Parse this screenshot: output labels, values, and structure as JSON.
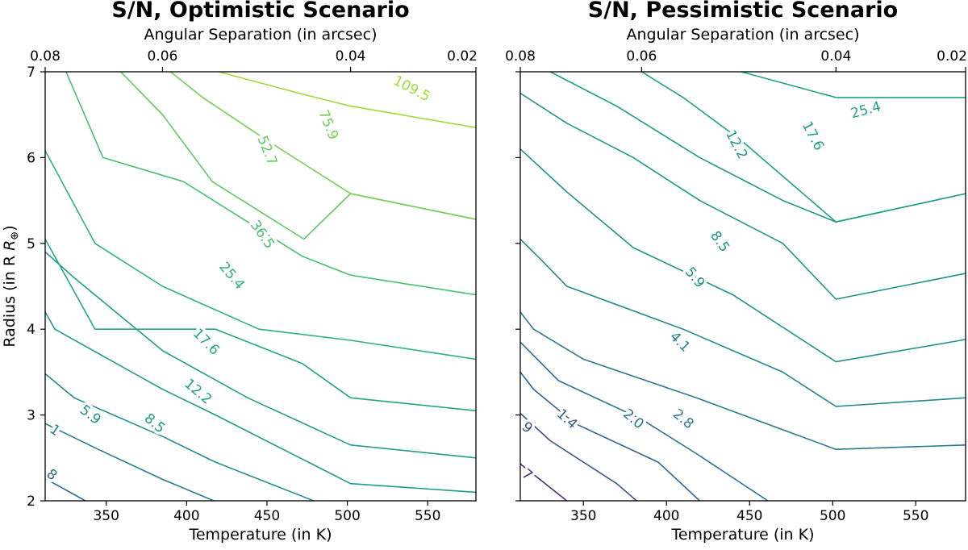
{
  "chart_data": [
    {
      "type": "contour",
      "title": "S/N, Optimistic Scenario",
      "xlabel": "Temperature (in K)",
      "ylabel": "Radius (in R",
      "ylabel_symbol": "⊕",
      "ylabel_end": ")",
      "x2label": "Angular Separation (in arcsec)",
      "xlim": [
        312,
        580
      ],
      "ylim": [
        2,
        7
      ],
      "xticks": [
        "350",
        "400",
        "450",
        "500",
        "550"
      ],
      "xtick_values": [
        350,
        400,
        450,
        500,
        550
      ],
      "yticks": [
        "2",
        "3",
        "4",
        "5",
        "6",
        "7"
      ],
      "yticks_labeled": true,
      "x2ticks": [
        "0.08",
        "0.06",
        "0.04",
        "0.02"
      ],
      "x2tick_temps": [
        312,
        385,
        502,
        580
      ],
      "colormap": [
        "#440154",
        "#3b528b",
        "#21918c",
        "#5ec962",
        "#fde725"
      ],
      "contours": [
        {
          "label": "8",
          "color": "#2b6a8d",
          "points": [
            [
              312,
              2.26
            ],
            [
              337,
              2.0
            ]
          ]
        },
        {
          "label": "1",
          "color": "#287d8e",
          "points": [
            [
              312,
              2.9
            ],
            [
              345,
              2.6
            ],
            [
              385,
              2.25
            ],
            [
              417,
              2.0
            ]
          ]
        },
        {
          "label": "5.9",
          "color": "#218e8d",
          "points": [
            [
              312,
              3.48
            ],
            [
              330,
              3.2
            ],
            [
              385,
              2.75
            ],
            [
              418,
              2.45
            ],
            [
              479,
              2.0
            ]
          ]
        },
        {
          "label": "8.5",
          "color": "#1f9a8a",
          "points": [
            [
              312,
              4.2
            ],
            [
              318,
              4.0
            ],
            [
              385,
              3.3
            ],
            [
              418,
              3.0
            ],
            [
              502,
              2.2
            ],
            [
              580,
              2.1
            ]
          ]
        },
        {
          "label": "12.2",
          "color": "#1f9e89",
          "points": [
            [
              312,
              4.9
            ],
            [
              330,
              4.6
            ],
            [
              385,
              3.75
            ],
            [
              438,
              3.2
            ],
            [
              502,
              2.65
            ],
            [
              580,
              2.5
            ]
          ]
        },
        {
          "label": "17.6",
          "color": "#22a785",
          "points": [
            [
              312,
              5.05
            ],
            [
              343,
              4.0
            ],
            [
              418,
              4.0
            ],
            [
              472,
              3.6
            ],
            [
              502,
              3.2
            ],
            [
              580,
              3.05
            ]
          ]
        },
        {
          "label": "25.4",
          "color": "#2db27d",
          "points": [
            [
              312,
              6.08
            ],
            [
              343,
              5.0
            ],
            [
              385,
              4.5
            ],
            [
              445,
              4.0
            ],
            [
              502,
              3.87
            ],
            [
              580,
              3.65
            ]
          ]
        },
        {
          "label": "36.5",
          "color": "#48c16e",
          "points": [
            [
              325,
              7.0
            ],
            [
              348,
              6.0
            ],
            [
              398,
              5.72
            ],
            [
              472,
              4.85
            ],
            [
              502,
              4.63
            ],
            [
              580,
              4.4
            ]
          ]
        },
        {
          "label": "52.7",
          "color": "#5ec962",
          "points": [
            [
              359,
              7.0
            ],
            [
              385,
              6.5
            ],
            [
              416,
              5.72
            ],
            [
              473,
              5.05
            ],
            [
              502,
              5.58
            ],
            [
              580,
              5.28
            ]
          ]
        },
        {
          "label": "75.9",
          "color": "#75d054",
          "points": [
            [
              390,
              7.0
            ],
            [
              410,
              6.7
            ],
            [
              450,
              6.2
            ],
            [
              502,
              5.58
            ],
            [
              580,
              5.28
            ]
          ]
        },
        {
          "label": "109.5",
          "color": "#9fda3a",
          "points": [
            [
              420,
              7.0
            ],
            [
              470,
              6.75
            ],
            [
              502,
              6.6
            ],
            [
              580,
              6.35
            ]
          ]
        }
      ],
      "contour_labels": [
        {
          "text": "8",
          "x": 316,
          "y": 2.3,
          "angle": 38,
          "color": "#2b6a8d"
        },
        {
          "text": "1",
          "x": 318,
          "y": 2.82,
          "angle": 35,
          "color": "#287d8e"
        },
        {
          "text": "5.9",
          "x": 340,
          "y": 3.0,
          "angle": 38,
          "color": "#218e8d"
        },
        {
          "text": "8.5",
          "x": 380,
          "y": 2.9,
          "angle": 40,
          "color": "#1f9a8a"
        },
        {
          "text": "12.2",
          "x": 407,
          "y": 3.27,
          "angle": 40,
          "color": "#1f9e89"
        },
        {
          "text": "17.6",
          "x": 412,
          "y": 3.85,
          "angle": 45,
          "color": "#22a785"
        },
        {
          "text": "25.4",
          "x": 428,
          "y": 4.62,
          "angle": 50,
          "color": "#2db27d"
        },
        {
          "text": "36.5",
          "x": 447,
          "y": 5.1,
          "angle": 55,
          "color": "#48c16e"
        },
        {
          "text": "52.7",
          "x": 450,
          "y": 6.08,
          "angle": 68,
          "color": "#5ec962"
        },
        {
          "text": "75.9",
          "x": 488,
          "y": 6.38,
          "angle": 68,
          "color": "#75d054"
        },
        {
          "text": "109.5",
          "x": 540,
          "y": 6.8,
          "angle": 28,
          "color": "#9fda3a"
        }
      ]
    },
    {
      "type": "contour",
      "title": "S/N, Pessimistic Scenario",
      "xlabel": "Temperature (in K)",
      "ylabel": "",
      "x2label": "Angular Separation (in arcsec)",
      "xlim": [
        312,
        580
      ],
      "ylim": [
        2,
        7
      ],
      "xticks": [
        "350",
        "400",
        "450",
        "500",
        "550"
      ],
      "xtick_values": [
        350,
        400,
        450,
        500,
        550
      ],
      "yticks": [
        "2",
        "3",
        "4",
        "5",
        "6",
        "7"
      ],
      "yticks_labeled": false,
      "x2ticks": [
        "0.08",
        "0.06",
        "0.04",
        "0.02"
      ],
      "x2tick_temps": [
        312,
        385,
        502,
        580
      ],
      "colormap": [
        "#440154",
        "#3b528b",
        "#21918c",
        "#5ec962",
        "#fde725"
      ],
      "contours": [
        {
          "label": "7",
          "color": "#472f7d",
          "points": [
            [
              312,
              2.43
            ],
            [
              340,
              2.0
            ]
          ]
        },
        {
          "label": "9",
          "color": "#3b518a",
          "points": [
            [
              312,
              3.02
            ],
            [
              330,
              2.7
            ],
            [
              370,
              2.2
            ],
            [
              382,
              2.0
            ]
          ]
        },
        {
          "label": "1.4",
          "color": "#34618d",
          "points": [
            [
              312,
              3.5
            ],
            [
              320,
              3.3
            ],
            [
              345,
              2.9
            ],
            [
              395,
              2.45
            ],
            [
              420,
              2.0
            ]
          ]
        },
        {
          "label": "2.0",
          "color": "#2c728e",
          "points": [
            [
              312,
              3.85
            ],
            [
              335,
              3.4
            ],
            [
              385,
              2.95
            ],
            [
              418,
              2.55
            ],
            [
              461,
              2.0
            ]
          ]
        },
        {
          "label": "2.8",
          "color": "#287c8e",
          "points": [
            [
              312,
              4.2
            ],
            [
              320,
              4.0
            ],
            [
              350,
              3.65
            ],
            [
              418,
              3.2
            ],
            [
              467,
              2.85
            ],
            [
              502,
              2.6
            ],
            [
              580,
              2.65
            ]
          ]
        },
        {
          "label": "4.1",
          "color": "#23888e",
          "points": [
            [
              312,
              5.05
            ],
            [
              325,
              4.8
            ],
            [
              340,
              4.5
            ],
            [
              410,
              4.0
            ],
            [
              470,
              3.5
            ],
            [
              502,
              3.1
            ],
            [
              580,
              3.2
            ]
          ]
        },
        {
          "label": "5.9",
          "color": "#1f938b",
          "points": [
            [
              312,
              6.1
            ],
            [
              340,
              5.6
            ],
            [
              380,
              4.95
            ],
            [
              440,
              4.4
            ],
            [
              502,
              3.62
            ],
            [
              580,
              3.88
            ]
          ]
        },
        {
          "label": "8.5",
          "color": "#1f968b",
          "points": [
            [
              312,
              6.75
            ],
            [
              340,
              6.4
            ],
            [
              380,
              6.0
            ],
            [
              420,
              5.5
            ],
            [
              470,
              5.0
            ],
            [
              502,
              4.35
            ],
            [
              580,
              4.65
            ]
          ]
        },
        {
          "label": "12.2",
          "color": "#1f9a8a",
          "points": [
            [
              330,
              7.0
            ],
            [
              370,
              6.6
            ],
            [
              420,
              6.0
            ],
            [
              470,
              5.5
            ],
            [
              502,
              5.25
            ],
            [
              580,
              5.58
            ]
          ]
        },
        {
          "label": "17.6",
          "color": "#1fa088",
          "points": [
            [
              385,
              7.0
            ],
            [
              410,
              6.7
            ],
            [
              445,
              6.2
            ],
            [
              502,
              5.25
            ],
            [
              580,
              5.58
            ]
          ]
        },
        {
          "label": "25.4",
          "color": "#20a486",
          "points": [
            [
              445,
              7.0
            ],
            [
              502,
              6.7
            ],
            [
              580,
              6.7
            ]
          ]
        }
      ],
      "contour_labels": [
        {
          "text": "7",
          "x": 316,
          "y": 2.3,
          "angle": 40,
          "color": "#472f7d"
        },
        {
          "text": "9",
          "x": 316,
          "y": 2.85,
          "angle": 40,
          "color": "#3b518a"
        },
        {
          "text": "1.4",
          "x": 340,
          "y": 2.95,
          "angle": 42,
          "color": "#34618d"
        },
        {
          "text": "2.0",
          "x": 380,
          "y": 2.95,
          "angle": 40,
          "color": "#2c728e"
        },
        {
          "text": "2.8",
          "x": 410,
          "y": 2.95,
          "angle": 40,
          "color": "#287c8e"
        },
        {
          "text": "4.1",
          "x": 408,
          "y": 3.85,
          "angle": 45,
          "color": "#23888e"
        },
        {
          "text": "5.9",
          "x": 417,
          "y": 4.6,
          "angle": 50,
          "color": "#1f938b"
        },
        {
          "text": "8.5",
          "x": 432,
          "y": 5.02,
          "angle": 55,
          "color": "#1f968b"
        },
        {
          "text": "12.2",
          "x": 442,
          "y": 6.15,
          "angle": 62,
          "color": "#1f9a8a"
        },
        {
          "text": "17.6",
          "x": 488,
          "y": 6.25,
          "angle": 62,
          "color": "#1fa088"
        },
        {
          "text": "25.4",
          "x": 520,
          "y": 6.55,
          "angle": -15,
          "color": "#20a486"
        }
      ]
    }
  ]
}
